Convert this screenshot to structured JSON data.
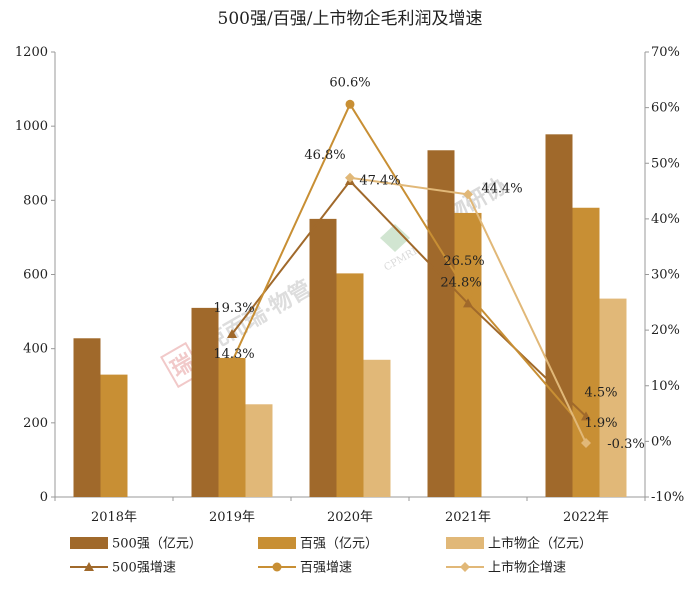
{
  "chart_data": {
    "type": "bar",
    "title": "500强/百强/上市物企毛利润及增速",
    "categories": [
      "2018年",
      "2019年",
      "2020年",
      "2021年",
      "2022年"
    ],
    "series": [
      {
        "name": "500强（亿元）",
        "kind": "bar",
        "axis": "left",
        "color": "#a0692b",
        "values": [
          428,
          510,
          750,
          935,
          978
        ]
      },
      {
        "name": "百强（亿元）",
        "kind": "bar",
        "axis": "left",
        "color": "#c88f34",
        "values": [
          330,
          375,
          603,
          766,
          780
        ]
      },
      {
        "name": "上市物企（亿元）",
        "kind": "bar",
        "axis": "left",
        "color": "#e1b878",
        "values": [
          null,
          250,
          370,
          null,
          535
        ]
      },
      {
        "name": "500强增速",
        "kind": "line",
        "axis": "right",
        "marker": "triangle",
        "color": "#a0692b",
        "values": [
          null,
          19.3,
          46.8,
          24.8,
          4.5
        ]
      },
      {
        "name": "百强增速",
        "kind": "line",
        "axis": "right",
        "marker": "circle",
        "color": "#c88f34",
        "values": [
          null,
          14.3,
          60.6,
          26.5,
          1.9
        ]
      },
      {
        "name": "上市物企增速",
        "kind": "line",
        "axis": "right",
        "marker": "diamond",
        "color": "#e1b878",
        "values": [
          null,
          null,
          47.4,
          44.4,
          -0.3
        ]
      }
    ],
    "data_labels": [
      {
        "text": "19.3%",
        "series": 3,
        "index": 1
      },
      {
        "text": "14.3%",
        "series": 4,
        "index": 1
      },
      {
        "text": "60.6%",
        "series": 4,
        "index": 2
      },
      {
        "text": "46.8%",
        "series": 3,
        "index": 2
      },
      {
        "text": "47.4%",
        "series": 5,
        "index": 2
      },
      {
        "text": "26.5%",
        "series": 4,
        "index": 3
      },
      {
        "text": "24.8%",
        "series": 3,
        "index": 3
      },
      {
        "text": "44.4%",
        "series": 5,
        "index": 3
      },
      {
        "text": "4.5%",
        "series": 3,
        "index": 4
      },
      {
        "text": "1.9%",
        "series": 4,
        "index": 4
      },
      {
        "text": "-0.3%",
        "series": 5,
        "index": 4
      }
    ],
    "ylim_left": [
      0,
      1200
    ],
    "yticks_left": [
      0,
      200,
      400,
      600,
      800,
      1000,
      1200
    ],
    "ylim_right": [
      -10,
      70
    ],
    "yticks_right": [
      "-10%",
      "0%",
      "10%",
      "20%",
      "30%",
      "40%",
      "50%",
      "60%",
      "70%"
    ],
    "grid": false,
    "legend_position": "bottom"
  },
  "watermarks": {
    "left_seal": "瑞",
    "left_text": "克而瑞·物管",
    "center_text": "中物研协",
    "center_sub": "CPMRI"
  }
}
